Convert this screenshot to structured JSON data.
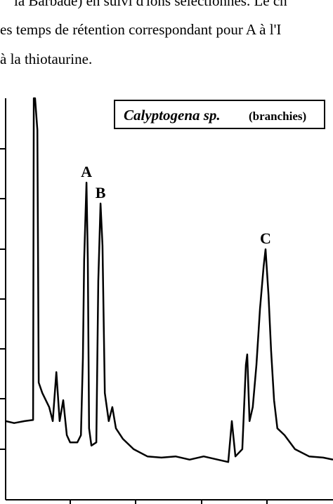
{
  "text_lines": [
    "la Barbade) en suivi d'ions sélectionnés. Le ch",
    "es temps de rétention correspondant pour A à l'I",
    "à la thiotaurine."
  ],
  "chart_data": {
    "type": "line",
    "title": "Calyptogena sp.",
    "subtitle": "(branchies)",
    "x": [
      0,
      2.6,
      5.8,
      8.4,
      8.6,
      9.0,
      9.7,
      10.1,
      11.2,
      13.3,
      14.4,
      15.5,
      16.5,
      17.6,
      18.7,
      19.7,
      21.9,
      23.0,
      23.6,
      24.0,
      24.7,
      25.1,
      25.5,
      26.2,
      27.7,
      28.3,
      29.0,
      29.6,
      30.3,
      31.5,
      32.6,
      33.7,
      35.8,
      39.1,
      43.3,
      47.6,
      51.9,
      56.2,
      60.5,
      64.8,
      68.0,
      69.1,
      70.2,
      72.3,
      73.4,
      73.8,
      74.5,
      75.5,
      76.6,
      77.7,
      78.8,
      79.4,
      80.3,
      81.1,
      82.0,
      83.0,
      85.2,
      88.4,
      92.7,
      97.0,
      100
    ],
    "series": [
      {
        "name": "Calyptogena sp.",
        "color": "#000000",
        "values": [
          19.6,
          19.1,
          19.6,
          19.9,
          100,
          100,
          92.1,
          29.2,
          26.6,
          23.1,
          19.6,
          31.8,
          19.6,
          24.8,
          16.1,
          14.3,
          14.3,
          16.1,
          35.3,
          59.8,
          79.0,
          59.8,
          17.8,
          13.5,
          14.3,
          54.5,
          73.8,
          63.3,
          26.6,
          19.6,
          23.1,
          17.8,
          15.2,
          12.6,
          10.8,
          10.5,
          10.8,
          10.0,
          10.8,
          10.0,
          9.4,
          19.6,
          10.8,
          12.6,
          33.6,
          36.2,
          19.6,
          23.1,
          33.6,
          47.6,
          58.0,
          62.4,
          51.0,
          37.1,
          24.8,
          17.8,
          16.1,
          12.6,
          10.8,
          10.5,
          10.0
        ]
      }
    ],
    "xlim": [
      0,
      100
    ],
    "ylim": [
      0,
      100
    ],
    "annotations": [
      {
        "text": "A",
        "x": 24.7,
        "y": 79.0
      },
      {
        "text": "B",
        "x": 29.0,
        "y": 73.8
      },
      {
        "text": "C",
        "x": 79.4,
        "y": 62.4
      }
    ]
  }
}
